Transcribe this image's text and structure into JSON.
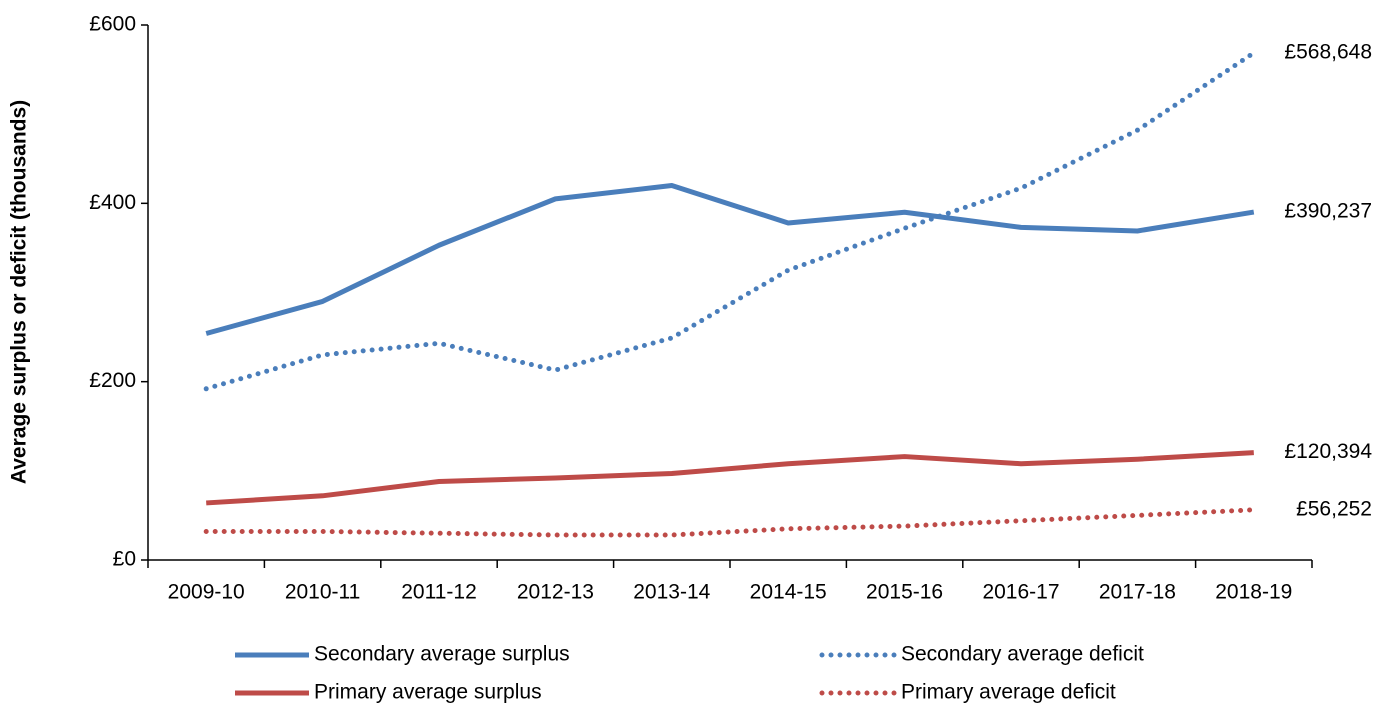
{
  "chart_data": {
    "type": "line",
    "y_label": "Average surplus or deficit (thousands)",
    "categories": [
      "2009-10",
      "2010-11",
      "2011-12",
      "2012-13",
      "2013-14",
      "2014-15",
      "2015-16",
      "2016-17",
      "2017-18",
      "2018-19"
    ],
    "series": [
      {
        "name": "Secondary average surplus",
        "color": "#4a7ebb",
        "style": "solid",
        "values": [
          254,
          290,
          353,
          405,
          420,
          378,
          390,
          373,
          369,
          390.237
        ],
        "value_labels": [
          null,
          null,
          null,
          null,
          null,
          null,
          null,
          null,
          null,
          "£390,237"
        ]
      },
      {
        "name": "Secondary average deficit",
        "color": "#4a7ebb",
        "style": "dotted",
        "values": [
          192,
          230,
          243,
          213,
          249,
          325,
          372,
          417,
          482,
          568.648
        ],
        "value_labels": [
          null,
          null,
          null,
          null,
          null,
          null,
          null,
          null,
          null,
          "£568,648"
        ]
      },
      {
        "name": "Primary average surplus",
        "color": "#be4b48",
        "style": "solid",
        "values": [
          64,
          72,
          88,
          92,
          97,
          108,
          116,
          108,
          113,
          120.394
        ],
        "value_labels": [
          null,
          null,
          null,
          null,
          null,
          null,
          null,
          null,
          null,
          "£120,394"
        ]
      },
      {
        "name": "Primary average deficit",
        "color": "#be4b48",
        "style": "dotted",
        "values": [
          32,
          32,
          30,
          28,
          28,
          35,
          38,
          44,
          50,
          56.252
        ],
        "value_labels": [
          null,
          null,
          null,
          null,
          null,
          null,
          null,
          null,
          null,
          "£56,252"
        ]
      }
    ],
    "ylim": [
      0,
      600
    ],
    "yticks": [
      {
        "value": 0,
        "label": "£0"
      },
      {
        "value": 200,
        "label": "£200"
      },
      {
        "value": 400,
        "label": "£400"
      },
      {
        "value": 600,
        "label": "£600"
      }
    ],
    "grid": false,
    "legend": "bottom"
  }
}
